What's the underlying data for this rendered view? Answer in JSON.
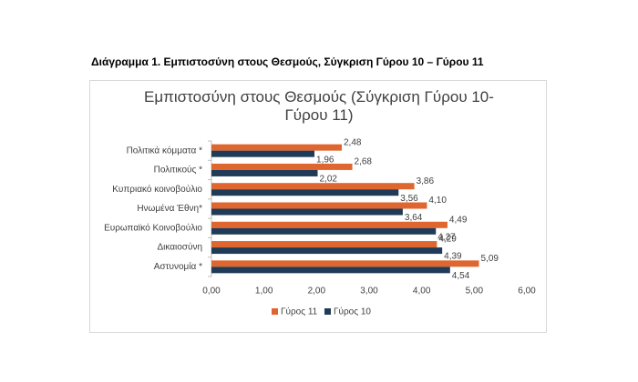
{
  "caption": "Διάγραμμα 1. Εμπιστοσύνη στους Θεσμούς, Σύγκριση Γύρου 10 – Γύρου 11",
  "chart_data": {
    "type": "hbar",
    "title": "Εμπιστοσύνη στους Θεσμούς (Σύγκριση Γύρου 10-Γύρου 11)",
    "categories": [
      "Πολιτικά κόμματα *",
      "Πολιτικούς *",
      "Κυπριακό κοινοβούλιο",
      "Ηνωμένα Έθνη*",
      "Ευρωπαϊκό Κοινοβούλιο",
      "Δικαιοσύνη",
      "Αστυνομία *"
    ],
    "series": [
      {
        "name": "Γύρος 11",
        "color": "#e0662f",
        "values": [
          2.48,
          2.68,
          3.86,
          4.1,
          4.49,
          4.29,
          5.09
        ],
        "value_labels": [
          "2,48",
          "2,68",
          "3,86",
          "4,10",
          "4,49",
          "4,29",
          "5,09"
        ]
      },
      {
        "name": "Γύρος 10",
        "color": "#1f3b57",
        "values": [
          1.96,
          2.02,
          3.56,
          3.64,
          4.27,
          4.39,
          4.54
        ],
        "value_labels": [
          "1,96",
          "2,02",
          "3,56",
          "3,64",
          "4,27",
          "4,39",
          "4,54"
        ]
      }
    ],
    "xlim": [
      0,
      6
    ],
    "xticks": [
      {
        "value": 0,
        "label": "0,00"
      },
      {
        "value": 1,
        "label": "1,00"
      },
      {
        "value": 2,
        "label": "2,00"
      },
      {
        "value": 3,
        "label": "3,00"
      },
      {
        "value": 4,
        "label": "4,00"
      },
      {
        "value": 5,
        "label": "5,00"
      },
      {
        "value": 6,
        "label": "6,00"
      }
    ],
    "legend": "bottom"
  }
}
